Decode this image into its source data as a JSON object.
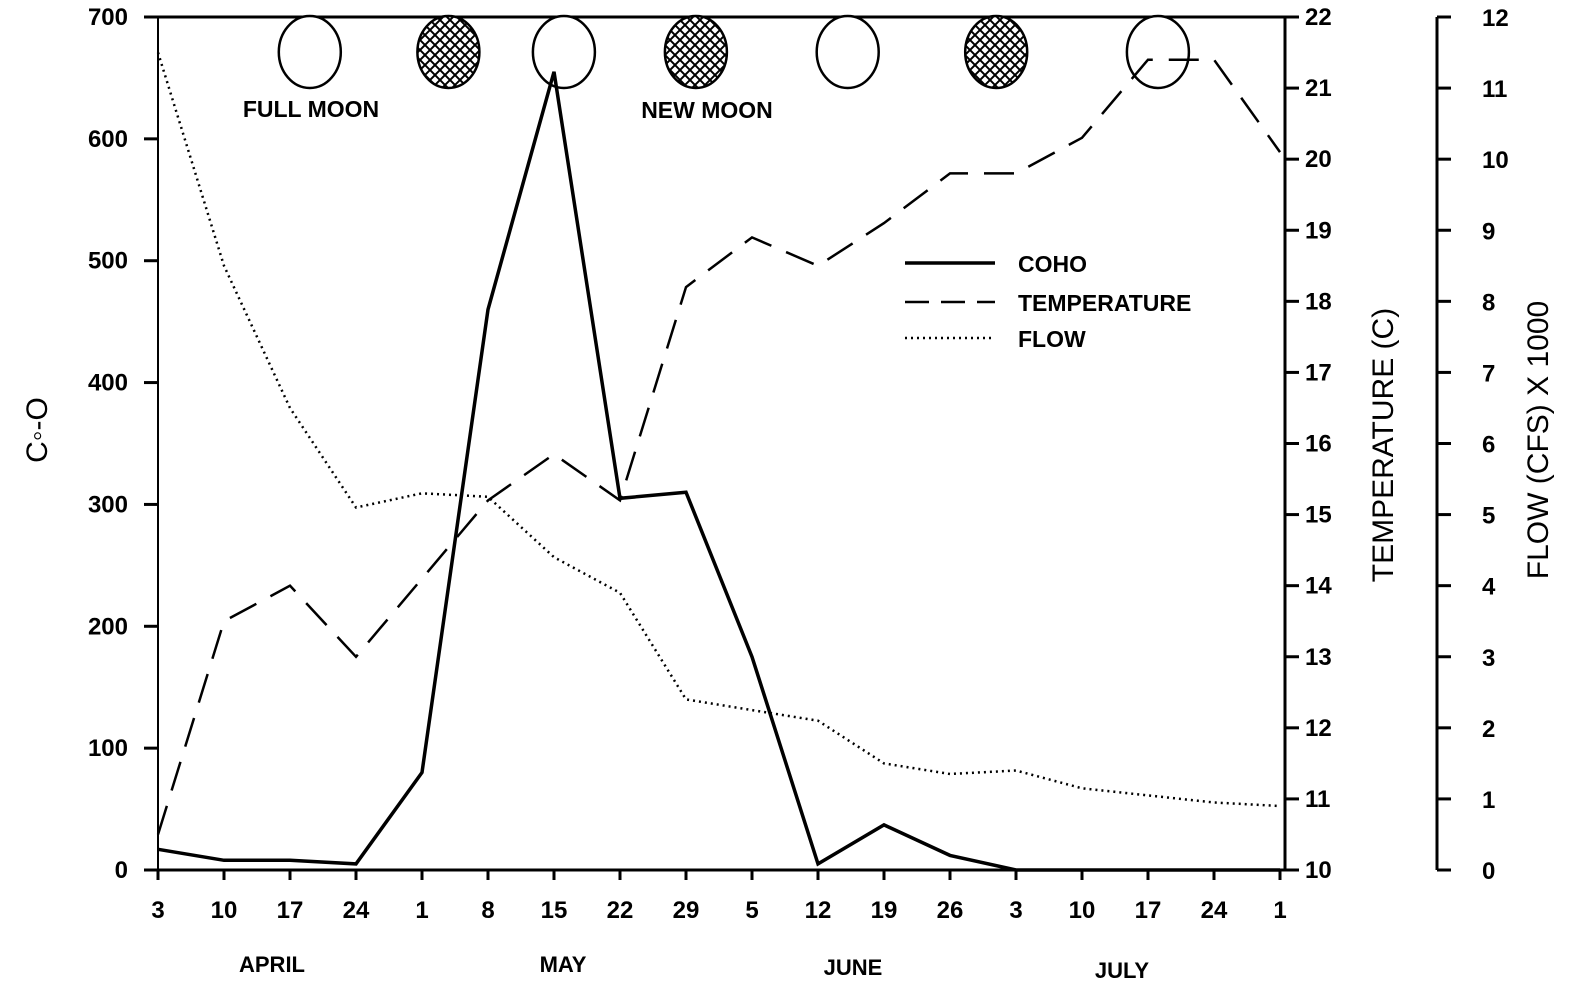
{
  "chart_data": {
    "type": "line",
    "x_categories": [
      "3",
      "10",
      "17",
      "24",
      "1",
      "8",
      "15",
      "22",
      "29",
      "5",
      "12",
      "19",
      "26",
      "3",
      "10",
      "17",
      "24",
      "1"
    ],
    "months": [
      "APRIL",
      "MAY",
      "JUNE",
      "JULY"
    ],
    "left_axis": {
      "label": "C◦-O",
      "ticks": [
        0,
        100,
        200,
        300,
        400,
        500,
        600,
        700
      ],
      "range": [
        0,
        700
      ]
    },
    "temp_axis": {
      "label": "TEMPERATURE (C)",
      "ticks": [
        10,
        11,
        12,
        13,
        14,
        15,
        16,
        17,
        18,
        19,
        20,
        21,
        22
      ],
      "range": [
        10,
        22
      ]
    },
    "flow_axis": {
      "label": "FLOW (CFS) X 1000",
      "ticks": [
        0,
        1,
        2,
        3,
        4,
        5,
        6,
        7,
        8,
        9,
        10,
        11,
        12
      ],
      "tick_labels": [
        "0",
        "1",
        "2",
        "3",
        "4",
        "5",
        "6",
        "7",
        "8",
        "9",
        "10",
        "11",
        "12"
      ],
      "range": [
        0,
        12
      ]
    },
    "legend": {
      "coho": "COHO",
      "temperature": "TEMPERATURE",
      "flow": "FLOW"
    },
    "moon_labels": {
      "full": "FULL MOON",
      "new": "NEW MOON"
    },
    "moons": [
      {
        "phase": "full",
        "x": 2.3
      },
      {
        "phase": "new",
        "x": 4.4
      },
      {
        "phase": "full",
        "x": 6.15
      },
      {
        "phase": "new",
        "x": 8.15
      },
      {
        "phase": "full",
        "x": 10.45
      },
      {
        "phase": "new",
        "x": 12.7
      },
      {
        "phase": "full",
        "x": 15.15
      }
    ],
    "series": [
      {
        "name": "COHO",
        "axis": "left",
        "style": "solid",
        "x": [
          0,
          1,
          2,
          3,
          4,
          5,
          6,
          7,
          8,
          9,
          10,
          11,
          12,
          13,
          14,
          15,
          16,
          17
        ],
        "y": [
          17,
          8,
          8,
          5,
          80,
          460,
          655,
          305,
          310,
          175,
          5,
          37,
          12,
          0,
          0,
          0,
          0,
          0
        ]
      },
      {
        "name": "TEMPERATURE",
        "axis": "temp",
        "style": "dashed",
        "x": [
          0,
          1,
          2,
          3,
          4,
          5,
          6,
          7,
          8,
          9,
          10,
          11,
          12,
          13,
          14,
          15,
          16,
          17
        ],
        "y": [
          10.5,
          13.5,
          14.0,
          13.0,
          14.1,
          15.2,
          15.85,
          15.2,
          18.2,
          18.9,
          18.5,
          19.1,
          19.8,
          19.8,
          20.3,
          21.4,
          21.4,
          20.1
        ]
      },
      {
        "name": "FLOW",
        "axis": "flow",
        "style": "dotted",
        "x": [
          0,
          1,
          2,
          3,
          4,
          5,
          6,
          7,
          8,
          9,
          10,
          11,
          12,
          13,
          14,
          15,
          16,
          17
        ],
        "y": [
          11.5,
          8.5,
          6.5,
          5.1,
          5.3,
          5.25,
          4.4,
          3.9,
          2.4,
          2.25,
          2.1,
          1.5,
          1.35,
          1.4,
          1.15,
          1.05,
          0.95,
          0.9
        ]
      }
    ]
  }
}
